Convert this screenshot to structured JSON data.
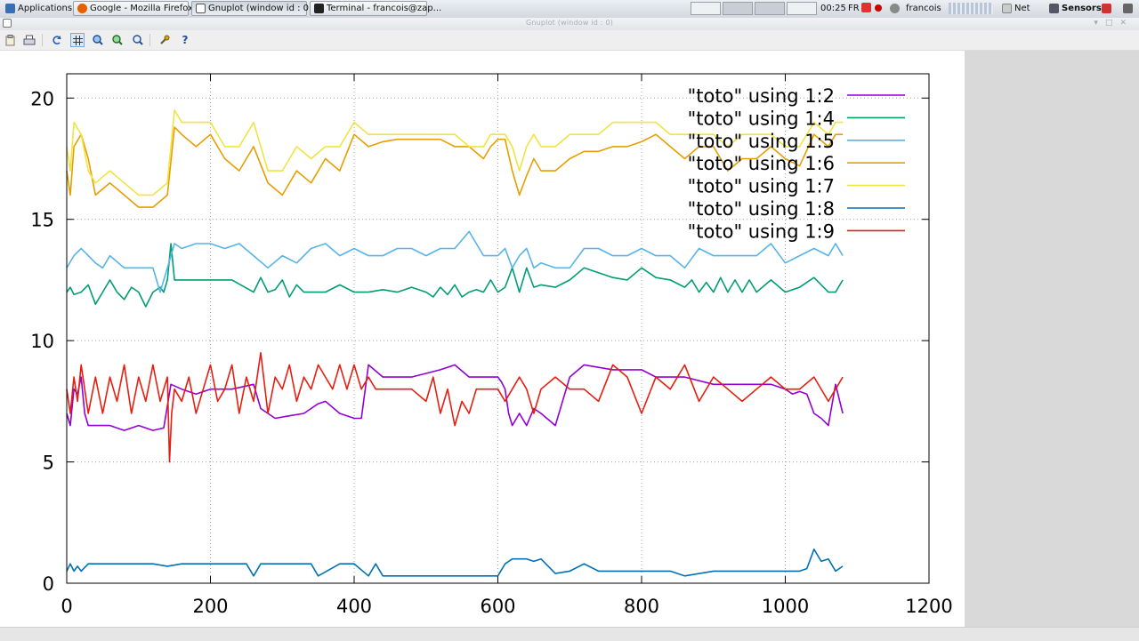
{
  "taskbar": {
    "applications_label": "Applications",
    "tasks": [
      {
        "label": "Google - Mozilla Firefox",
        "icon": "firefox-icon"
      },
      {
        "label": "Gnuplot (window id : 0)",
        "icon": "gnuplot-icon"
      },
      {
        "label": "Terminal - francois@zap...",
        "icon": "terminal-icon"
      }
    ],
    "clock": "00:25",
    "keyboard_layout": "FR",
    "user": "francois",
    "net_label": "Net",
    "sensors_label": "Sensors"
  },
  "window": {
    "title": "Gnuplot (window id : 0)"
  },
  "toolbar": {
    "buttons": [
      {
        "name": "copy-to-clipboard-button",
        "icon": "clipboard-icon"
      },
      {
        "name": "print-button",
        "icon": "printer-icon"
      },
      {
        "name": "replot-button",
        "icon": "refresh-icon"
      },
      {
        "name": "toggle-grid-button",
        "icon": "grid-icon"
      },
      {
        "name": "previous-zoom-button",
        "icon": "zoom-previous-icon"
      },
      {
        "name": "next-zoom-button",
        "icon": "zoom-next-icon"
      },
      {
        "name": "autoscale-button",
        "icon": "zoom-autoscale-icon"
      },
      {
        "name": "settings-button",
        "icon": "wrench-icon"
      },
      {
        "name": "help-button",
        "icon": "help-icon"
      }
    ]
  },
  "chart_data": {
    "type": "line",
    "title": "",
    "xlabel": "",
    "ylabel": "",
    "xlim": [
      0,
      1200
    ],
    "ylim": [
      0,
      21
    ],
    "xticks": [
      0,
      200,
      400,
      600,
      800,
      1000,
      1200
    ],
    "yticks": [
      0,
      5,
      10,
      15,
      20
    ],
    "grid": true,
    "legend_position": "top-right",
    "series": [
      {
        "name": "\"toto\" using 1:2",
        "color": "#9400d3",
        "x": [
          0,
          5,
          10,
          15,
          20,
          25,
          30,
          40,
          60,
          80,
          100,
          120,
          135,
          145,
          160,
          180,
          200,
          230,
          260,
          270,
          290,
          310,
          330,
          340,
          350,
          360,
          380,
          400,
          410,
          420,
          440,
          480,
          520,
          540,
          560,
          580,
          590,
          600,
          605,
          610,
          615,
          620,
          630,
          640,
          650,
          660,
          680,
          700,
          720,
          760,
          800,
          820,
          860,
          900,
          950,
          980,
          1000,
          1010,
          1020,
          1030,
          1040,
          1050,
          1060,
          1070,
          1080
        ],
        "y": [
          7.0,
          6.5,
          8.0,
          7.8,
          8.5,
          7.0,
          6.5,
          6.5,
          6.5,
          6.3,
          6.5,
          6.3,
          6.4,
          8.2,
          8.0,
          7.8,
          8.0,
          8.0,
          8.2,
          7.2,
          6.8,
          6.9,
          7.0,
          7.2,
          7.4,
          7.5,
          7.0,
          6.8,
          6.8,
          9.0,
          8.5,
          8.5,
          8.8,
          9.0,
          8.5,
          8.5,
          8.5,
          8.5,
          8.3,
          8.0,
          7.0,
          6.5,
          7.0,
          6.5,
          7.2,
          7.0,
          6.5,
          8.5,
          9.0,
          8.8,
          8.8,
          8.5,
          8.5,
          8.2,
          8.2,
          8.2,
          8.0,
          7.8,
          7.9,
          7.8,
          7.0,
          6.8,
          6.5,
          8.2,
          7.0
        ]
      },
      {
        "name": "\"toto\" using 1:4",
        "color": "#009e73",
        "x": [
          0,
          5,
          10,
          20,
          30,
          40,
          50,
          60,
          70,
          80,
          90,
          100,
          110,
          120,
          130,
          135,
          140,
          145,
          150,
          170,
          200,
          230,
          260,
          270,
          280,
          290,
          300,
          310,
          320,
          330,
          340,
          360,
          380,
          400,
          420,
          440,
          460,
          480,
          500,
          510,
          520,
          530,
          540,
          550,
          560,
          570,
          580,
          590,
          600,
          610,
          620,
          630,
          640,
          650,
          660,
          680,
          700,
          720,
          740,
          760,
          780,
          800,
          820,
          840,
          860,
          870,
          880,
          890,
          900,
          910,
          920,
          930,
          940,
          950,
          960,
          980,
          1000,
          1020,
          1040,
          1060,
          1070,
          1080
        ],
        "y": [
          12.0,
          12.2,
          11.9,
          12.0,
          12.3,
          11.5,
          12.0,
          12.5,
          12.0,
          11.7,
          12.2,
          12.0,
          11.4,
          12.0,
          12.2,
          12.0,
          12.5,
          14.0,
          12.5,
          12.5,
          12.5,
          12.5,
          12.0,
          12.6,
          12.0,
          12.1,
          12.5,
          11.8,
          12.3,
          12.0,
          12.0,
          12.0,
          12.3,
          12.0,
          12.0,
          12.1,
          12.0,
          12.2,
          12.0,
          11.8,
          12.2,
          11.9,
          12.3,
          11.8,
          12.0,
          12.1,
          12.0,
          12.5,
          12.0,
          12.2,
          13.0,
          12.0,
          13.0,
          12.2,
          12.3,
          12.2,
          12.5,
          13.0,
          12.8,
          12.6,
          12.5,
          13.0,
          12.6,
          12.5,
          12.2,
          12.5,
          12.0,
          12.4,
          12.0,
          12.6,
          12.0,
          12.5,
          12.0,
          12.5,
          12.0,
          12.5,
          12.0,
          12.2,
          12.6,
          12.0,
          12.0,
          12.5
        ]
      },
      {
        "name": "\"toto\" using 1:5",
        "color": "#56b4e9",
        "x": [
          0,
          10,
          20,
          30,
          40,
          50,
          60,
          80,
          100,
          120,
          130,
          140,
          150,
          160,
          180,
          200,
          220,
          240,
          260,
          280,
          300,
          320,
          340,
          360,
          380,
          400,
          420,
          440,
          460,
          480,
          500,
          520,
          540,
          560,
          580,
          600,
          610,
          620,
          630,
          640,
          650,
          660,
          680,
          700,
          720,
          740,
          760,
          780,
          800,
          820,
          840,
          860,
          880,
          900,
          920,
          940,
          960,
          980,
          1000,
          1020,
          1040,
          1060,
          1070,
          1080
        ],
        "y": [
          13.0,
          13.5,
          13.8,
          13.5,
          13.2,
          13.0,
          13.5,
          13.0,
          13.0,
          13.0,
          12.0,
          13.0,
          14.0,
          13.8,
          14.0,
          14.0,
          13.8,
          14.0,
          13.5,
          13.0,
          13.5,
          13.2,
          13.8,
          14.0,
          13.5,
          13.8,
          13.5,
          13.5,
          13.8,
          13.8,
          13.5,
          13.8,
          13.8,
          14.5,
          13.5,
          13.5,
          13.8,
          13.0,
          13.5,
          13.8,
          13.0,
          13.2,
          13.0,
          13.0,
          13.8,
          13.8,
          13.5,
          13.5,
          13.8,
          13.5,
          13.5,
          13.0,
          13.8,
          13.5,
          13.5,
          13.5,
          13.5,
          14.0,
          13.2,
          13.5,
          13.8,
          13.5,
          14.0,
          13.5
        ]
      },
      {
        "name": "\"toto\" using 1:6",
        "color": "#e69f00",
        "x": [
          0,
          5,
          10,
          20,
          30,
          40,
          60,
          80,
          100,
          120,
          140,
          150,
          160,
          180,
          200,
          220,
          240,
          260,
          280,
          300,
          320,
          340,
          360,
          380,
          400,
          420,
          440,
          460,
          480,
          500,
          520,
          540,
          560,
          580,
          590,
          600,
          610,
          620,
          630,
          640,
          650,
          660,
          680,
          700,
          720,
          740,
          760,
          780,
          800,
          820,
          840,
          860,
          880,
          900,
          920,
          940,
          960,
          980,
          1000,
          1020,
          1040,
          1060,
          1070,
          1080
        ],
        "y": [
          17.0,
          16.0,
          18.0,
          18.5,
          17.5,
          16.0,
          16.5,
          16.0,
          15.5,
          15.5,
          16.0,
          18.8,
          18.5,
          18.0,
          18.5,
          17.5,
          17.0,
          18.0,
          16.5,
          16.0,
          17.0,
          16.5,
          17.5,
          17.0,
          18.5,
          18.0,
          18.2,
          18.3,
          18.3,
          18.3,
          18.3,
          18.0,
          18.0,
          17.5,
          18.0,
          18.3,
          18.3,
          17.0,
          16.0,
          16.8,
          17.5,
          17.0,
          17.0,
          17.5,
          17.8,
          17.8,
          18.0,
          18.0,
          18.2,
          18.5,
          18.0,
          17.5,
          18.0,
          18.0,
          17.0,
          17.5,
          17.5,
          18.0,
          17.5,
          17.2,
          18.5,
          18.0,
          18.5,
          18.5
        ]
      },
      {
        "name": "\"toto\" using 1:7",
        "color": "#f0e442",
        "x": [
          0,
          5,
          10,
          20,
          30,
          40,
          60,
          80,
          100,
          120,
          140,
          150,
          160,
          180,
          200,
          220,
          240,
          260,
          280,
          300,
          320,
          340,
          360,
          380,
          400,
          420,
          440,
          460,
          480,
          500,
          520,
          540,
          560,
          580,
          590,
          600,
          610,
          620,
          630,
          640,
          650,
          660,
          680,
          700,
          720,
          740,
          760,
          780,
          800,
          820,
          840,
          860,
          880,
          900,
          920,
          940,
          960,
          980,
          1000,
          1020,
          1040,
          1060,
          1070,
          1080
        ],
        "y": [
          18.0,
          17.0,
          19.0,
          18.5,
          17.0,
          16.5,
          17.0,
          16.5,
          16.0,
          16.0,
          16.5,
          19.5,
          19.0,
          19.0,
          19.0,
          18.0,
          18.0,
          19.0,
          17.0,
          17.0,
          18.0,
          17.5,
          18.0,
          18.0,
          19.0,
          18.5,
          18.5,
          18.5,
          18.5,
          18.5,
          18.5,
          18.5,
          18.0,
          18.0,
          18.5,
          18.5,
          18.5,
          18.0,
          17.0,
          18.0,
          18.5,
          18.0,
          18.0,
          18.5,
          18.5,
          18.5,
          19.0,
          19.0,
          19.0,
          19.0,
          18.5,
          18.5,
          18.5,
          18.5,
          18.0,
          18.5,
          18.5,
          18.5,
          18.0,
          18.0,
          19.0,
          18.5,
          19.0,
          19.0
        ]
      },
      {
        "name": "\"toto\" using 1:8",
        "color": "#0072b2",
        "x": [
          0,
          5,
          10,
          15,
          20,
          30,
          40,
          80,
          120,
          140,
          160,
          200,
          250,
          260,
          270,
          300,
          340,
          350,
          380,
          400,
          420,
          430,
          440,
          480,
          520,
          560,
          600,
          610,
          620,
          640,
          650,
          660,
          680,
          700,
          720,
          740,
          780,
          800,
          840,
          860,
          900,
          1000,
          1020,
          1030,
          1040,
          1050,
          1060,
          1070,
          1080
        ],
        "y": [
          0.5,
          0.8,
          0.5,
          0.7,
          0.5,
          0.8,
          0.8,
          0.8,
          0.8,
          0.7,
          0.8,
          0.8,
          0.8,
          0.3,
          0.8,
          0.8,
          0.8,
          0.3,
          0.8,
          0.8,
          0.3,
          0.8,
          0.3,
          0.3,
          0.3,
          0.3,
          0.3,
          0.8,
          1.0,
          1.0,
          0.9,
          1.0,
          0.4,
          0.5,
          0.8,
          0.5,
          0.5,
          0.5,
          0.5,
          0.3,
          0.5,
          0.5,
          0.5,
          0.6,
          1.4,
          0.9,
          1.0,
          0.5,
          0.7
        ]
      },
      {
        "name": "\"toto\" using 1:9",
        "color": "#e51e10",
        "x": [
          0,
          5,
          10,
          15,
          20,
          25,
          30,
          40,
          50,
          60,
          70,
          80,
          90,
          100,
          110,
          120,
          130,
          140,
          143,
          146,
          150,
          160,
          170,
          180,
          190,
          200,
          210,
          220,
          230,
          240,
          250,
          260,
          270,
          280,
          290,
          300,
          310,
          320,
          330,
          340,
          350,
          360,
          370,
          380,
          390,
          400,
          410,
          420,
          430,
          440,
          460,
          480,
          500,
          510,
          520,
          530,
          540,
          550,
          560,
          570,
          580,
          590,
          600,
          610,
          620,
          630,
          640,
          650,
          660,
          680,
          700,
          720,
          740,
          760,
          780,
          800,
          820,
          840,
          860,
          880,
          900,
          920,
          940,
          960,
          980,
          1000,
          1020,
          1040,
          1060,
          1070,
          1080
        ],
        "y": [
          8.0,
          7.0,
          8.5,
          7.5,
          9.0,
          8.0,
          7.0,
          8.5,
          7.0,
          8.5,
          7.5,
          9.0,
          7.0,
          8.5,
          7.5,
          9.0,
          7.5,
          8.5,
          5.0,
          7.0,
          8.0,
          7.5,
          8.5,
          7.0,
          8.0,
          9.0,
          7.5,
          8.0,
          9.0,
          7.0,
          8.5,
          7.5,
          9.5,
          7.0,
          8.5,
          8.0,
          9.0,
          7.5,
          8.5,
          8.0,
          9.0,
          8.5,
          8.0,
          9.0,
          8.0,
          9.0,
          8.0,
          8.5,
          8.0,
          8.0,
          8.0,
          8.0,
          7.5,
          8.5,
          7.0,
          8.0,
          6.5,
          7.5,
          7.0,
          8.0,
          8.0,
          8.0,
          8.0,
          7.5,
          8.0,
          8.5,
          8.0,
          7.0,
          8.0,
          8.5,
          8.0,
          8.0,
          7.5,
          9.0,
          8.5,
          7.0,
          8.5,
          8.0,
          9.0,
          7.5,
          8.5,
          8.0,
          7.5,
          8.0,
          8.5,
          8.0,
          8.0,
          8.5,
          7.5,
          8.0,
          8.5
        ]
      }
    ]
  }
}
